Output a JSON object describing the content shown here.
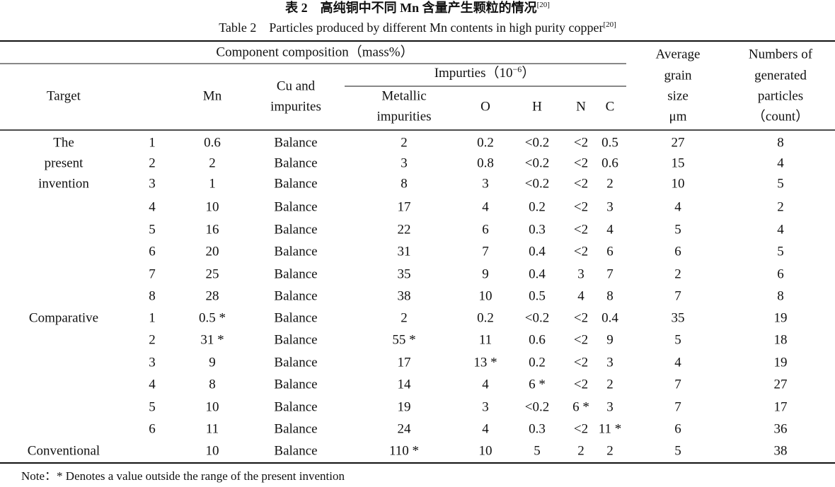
{
  "title": {
    "cn": "表 2　高纯铜中不同 Mn 含量产生颗粒的情况",
    "cn_ref": "[20]",
    "en": "Table 2　Particles produced by different Mn contents in high purity copper",
    "en_ref": "[20]"
  },
  "header": {
    "component": "Component composition（mass%）",
    "impurities": {
      "text": "Impurties（10",
      "sup": "−6",
      "close": "）"
    },
    "target": [
      "Target"
    ],
    "mn": [
      "Mn"
    ],
    "cu": [
      "Cu and",
      "impurites"
    ],
    "metal": [
      "Metallic",
      "impurities"
    ],
    "o": [
      "O"
    ],
    "h": [
      "H"
    ],
    "n": [
      "N"
    ],
    "c": [
      "C"
    ],
    "grain": [
      "Average",
      "grain",
      "size",
      "μm"
    ],
    "count": [
      "Numbers of",
      "generated",
      "particles",
      "（count）"
    ]
  },
  "rows": [
    {
      "target": "The",
      "no": "1",
      "mn": "0.6",
      "cu": "Balance",
      "metal": "2",
      "o": "0.2",
      "h": "<0.2",
      "n": "<2",
      "c": "0.5",
      "grain": "27",
      "count": "8"
    },
    {
      "target": "present",
      "no": "2",
      "mn": "2",
      "cu": "Balance",
      "metal": "3",
      "o": "0.8",
      "h": "<0.2",
      "n": "<2",
      "c": "0.6",
      "grain": "15",
      "count": "4"
    },
    {
      "target": "invention",
      "no": "3",
      "mn": "1",
      "cu": "Balance",
      "metal": "8",
      "o": "3",
      "h": "<0.2",
      "n": "<2",
      "c": "2",
      "grain": "10",
      "count": "5"
    },
    {
      "no": "4",
      "mn": "10",
      "cu": "Balance",
      "metal": "17",
      "o": "4",
      "h": "0.2",
      "n": "<2",
      "c": "3",
      "grain": "4",
      "count": "2"
    },
    {
      "no": "5",
      "mn": "16",
      "cu": "Balance",
      "metal": "22",
      "o": "6",
      "h": "0.3",
      "n": "<2",
      "c": "4",
      "grain": "5",
      "count": "4"
    },
    {
      "no": "6",
      "mn": "20",
      "cu": "Balance",
      "metal": "31",
      "o": "7",
      "h": "0.4",
      "n": "<2",
      "c": "6",
      "grain": "6",
      "count": "5"
    },
    {
      "no": "7",
      "mn": "25",
      "cu": "Balance",
      "metal": "35",
      "o": "9",
      "h": "0.4",
      "n": "3",
      "c": "7",
      "grain": "2",
      "count": "6"
    },
    {
      "no": "8",
      "mn": "28",
      "cu": "Balance",
      "metal": "38",
      "o": "10",
      "h": "0.5",
      "n": "4",
      "c": "8",
      "grain": "7",
      "count": "8"
    },
    {
      "target": "Comparative",
      "no": "1",
      "mn": "0.5 *",
      "cu": "Balance",
      "metal": "2",
      "o": "0.2",
      "h": "<0.2",
      "n": "<2",
      "c": "0.4",
      "grain": "35",
      "count": "19"
    },
    {
      "no": "2",
      "mn": "31 *",
      "cu": "Balance",
      "metal": "55 *",
      "o": "11",
      "h": "0.6",
      "n": "<2",
      "c": "9",
      "grain": "5",
      "count": "18"
    },
    {
      "no": "3",
      "mn": "9",
      "cu": "Balance",
      "metal": "17",
      "o": "13 *",
      "h": "0.2",
      "n": "<2",
      "c": "3",
      "grain": "4",
      "count": "19"
    },
    {
      "no": "4",
      "mn": "8",
      "cu": "Balance",
      "metal": "14",
      "o": "4",
      "h": "6 *",
      "n": "<2",
      "c": "2",
      "grain": "7",
      "count": "27"
    },
    {
      "no": "5",
      "mn": "10",
      "cu": "Balance",
      "metal": "19",
      "o": "3",
      "h": "<0.2",
      "n": "6 *",
      "c": "3",
      "grain": "7",
      "count": "17"
    },
    {
      "no": "6",
      "mn": "11",
      "cu": "Balance",
      "metal": "24",
      "o": "4",
      "h": "0.3",
      "n": "<2",
      "c": "11 *",
      "grain": "6",
      "count": "36"
    },
    {
      "target": "Conventional",
      "mn": "10",
      "cu": "Balance",
      "metal": "110 *",
      "o": "10",
      "h": "5",
      "n": "2",
      "c": "2",
      "grain": "5",
      "count": "38"
    }
  ],
  "note": "Note：* Denotes a value outside the range of the present invention"
}
